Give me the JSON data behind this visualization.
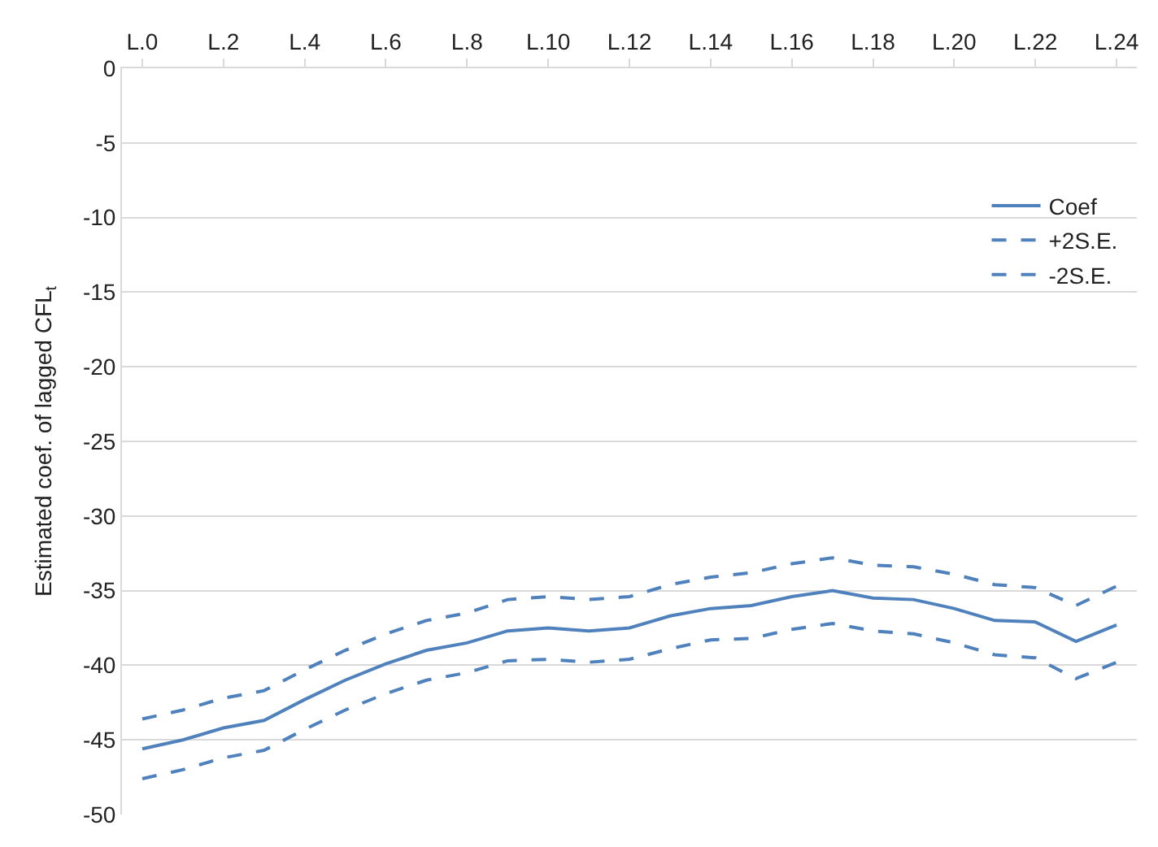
{
  "chart_data": {
    "type": "line",
    "ylabel": "Estimated coef. of lagged CFL$_{t}$",
    "categories": [
      "L.0",
      null,
      "L.2",
      null,
      "L.4",
      null,
      "L.6",
      null,
      "L.8",
      null,
      "L.10",
      null,
      "L.12",
      null,
      "L.14",
      null,
      "L.16",
      null,
      "L.18",
      null,
      "L.20",
      null,
      "L.22",
      null,
      "L.24"
    ],
    "ylim": [
      -50,
      0
    ],
    "yticks": [
      -50,
      -45,
      -40,
      -35,
      -30,
      -25,
      -20,
      -15,
      -10,
      -5,
      0
    ],
    "grid": "y",
    "legend": "top right",
    "marker": "none",
    "series": [
      {
        "name": "Coef",
        "color": "#4f81bd",
        "line_style": "solid",
        "values": [
          -45.6,
          -45,
          -44.2,
          -43.7,
          -42.3,
          -41,
          -39.9,
          -39,
          -38.5,
          -37.7,
          -37.5,
          -37.7,
          -37.5,
          -36.7,
          -36.2,
          -36,
          -35.4,
          -35,
          -35.5,
          -35.6,
          -36.2,
          -37,
          -37.1,
          -38.4,
          -37.3
        ]
      },
      {
        "name": "+2S.E.",
        "color": "#4f81bd",
        "line_style": "dashed",
        "values": [
          -43.6,
          -43,
          -42.2,
          -41.7,
          -40.3,
          -39,
          -37.9,
          -37,
          -36.5,
          -35.6,
          -35.4,
          -35.6,
          -35.4,
          -34.6,
          -34.1,
          -33.8,
          -33.2,
          -32.8,
          -33.3,
          -33.4,
          -33.9,
          -34.6,
          -34.8,
          -36,
          -34.7
        ]
      },
      {
        "name": "-2S.E.",
        "color": "#4f81bd",
        "line_style": "dashed",
        "values": [
          -47.6,
          -47,
          -46.2,
          -45.7,
          -44.3,
          -43,
          -41.9,
          -41,
          -40.5,
          -39.7,
          -39.6,
          -39.8,
          -39.6,
          -38.9,
          -38.3,
          -38.2,
          -37.6,
          -37.2,
          -37.7,
          -37.9,
          -38.5,
          -39.3,
          -39.5,
          -40.9,
          -39.8
        ]
      }
    ]
  }
}
